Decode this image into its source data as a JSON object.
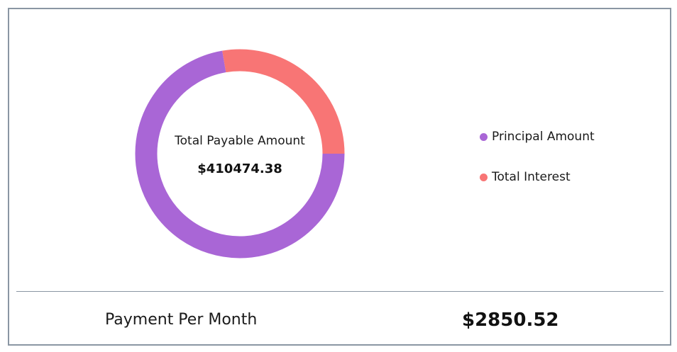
{
  "chart_data": {
    "type": "pie",
    "variant": "donut",
    "center_label": "Total Payable Amount",
    "center_value": "$410474.38",
    "slices": [
      {
        "name": "Principal Amount",
        "value": 0.723,
        "color": "#a966d6"
      },
      {
        "name": "Total Interest",
        "value": 0.277,
        "color": "#f87575"
      }
    ],
    "legend_placement": "right"
  },
  "legend": {
    "items": [
      {
        "label": "Principal Amount",
        "color": "#a966d6"
      },
      {
        "label": "Total Interest",
        "color": "#f87575"
      }
    ]
  },
  "footer": {
    "label": "Payment Per Month",
    "value": "$2850.52"
  }
}
